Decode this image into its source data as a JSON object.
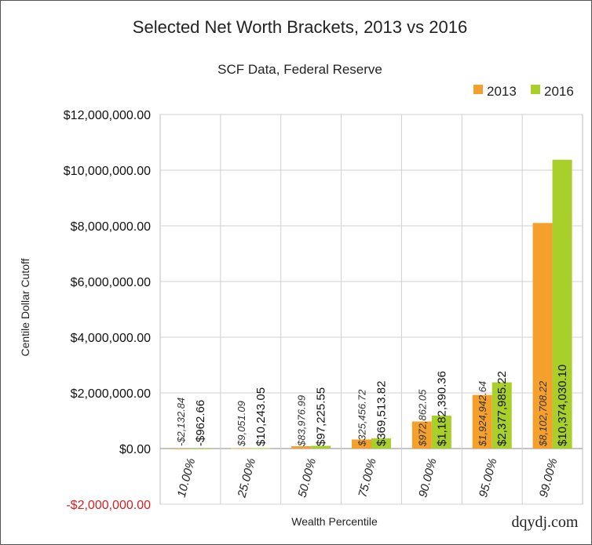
{
  "chart_data": {
    "type": "bar",
    "title": "Selected Net Worth Brackets, 2013 vs 2016",
    "subtitle": "SCF Data, Federal Reserve",
    "xlabel": "Wealth  Percentile",
    "ylabel": "Centile Dollar Cutoff",
    "categories": [
      "10.00%",
      "25.00%",
      "50.00%",
      "75.00%",
      "90.00%",
      "95.00%",
      "99.00%"
    ],
    "series": [
      {
        "name": "2013",
        "color": "#f5a02c",
        "values": [
          -2132.84,
          9051.09,
          83976.99,
          325456.72,
          972862.05,
          1924942.64,
          8102708.22
        ],
        "labels": [
          "-$2,132.84",
          "$9,051.09",
          "$83,976.99",
          "$325,456.72",
          "$972,862.05",
          "$1,924,942.64",
          "$8,102,708.22"
        ]
      },
      {
        "name": "2016",
        "color": "#a8cf2a",
        "values": [
          -962.66,
          10243.05,
          97225.55,
          369513.82,
          1182390.36,
          2377985.22,
          10374030.1
        ],
        "labels": [
          "-$962.66",
          "$10,243.05",
          "$97,225.55",
          "$369,513.82",
          "$1,182,390.36",
          "$2,377,985.22",
          "$10,374,030.10"
        ]
      }
    ],
    "ylim": [
      -2000000,
      12000000
    ],
    "yticks": [
      12000000,
      10000000,
      8000000,
      6000000,
      4000000,
      2000000,
      0,
      -2000000
    ],
    "ytick_labels": [
      "$12,000,000.00",
      "$10,000,000.00",
      "$8,000,000.00",
      "$6,000,000.00",
      "$4,000,000.00",
      "$2,000,000.00",
      "$0.00",
      "-$2,000,000.00"
    ],
    "negative_tick_color": "#d42020",
    "grid": true,
    "legend_position": "top-right",
    "credit": "dqydj.com"
  }
}
